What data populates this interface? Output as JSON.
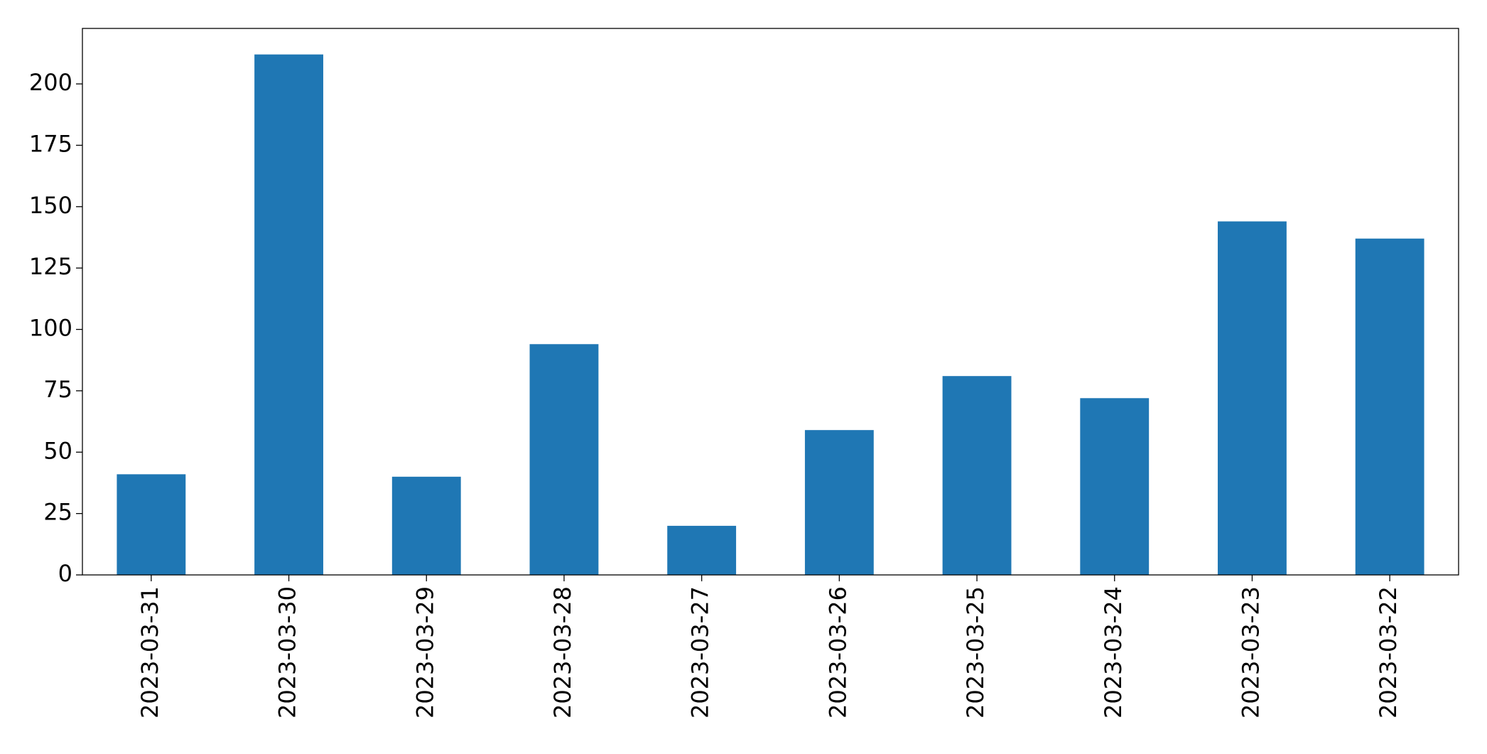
{
  "chart_data": {
    "type": "bar",
    "categories": [
      "2023-03-31",
      "2023-03-30",
      "2023-03-29",
      "2023-03-28",
      "2023-03-27",
      "2023-03-26",
      "2023-03-25",
      "2023-03-24",
      "2023-03-23",
      "2023-03-22"
    ],
    "values": [
      41,
      212,
      40,
      94,
      20,
      59,
      81,
      72,
      144,
      137
    ],
    "color": "#1f77b4",
    "ylim": [
      0,
      222.6
    ],
    "yticks": [
      0,
      25,
      50,
      75,
      100,
      125,
      150,
      175,
      200
    ],
    "grid": false
  }
}
